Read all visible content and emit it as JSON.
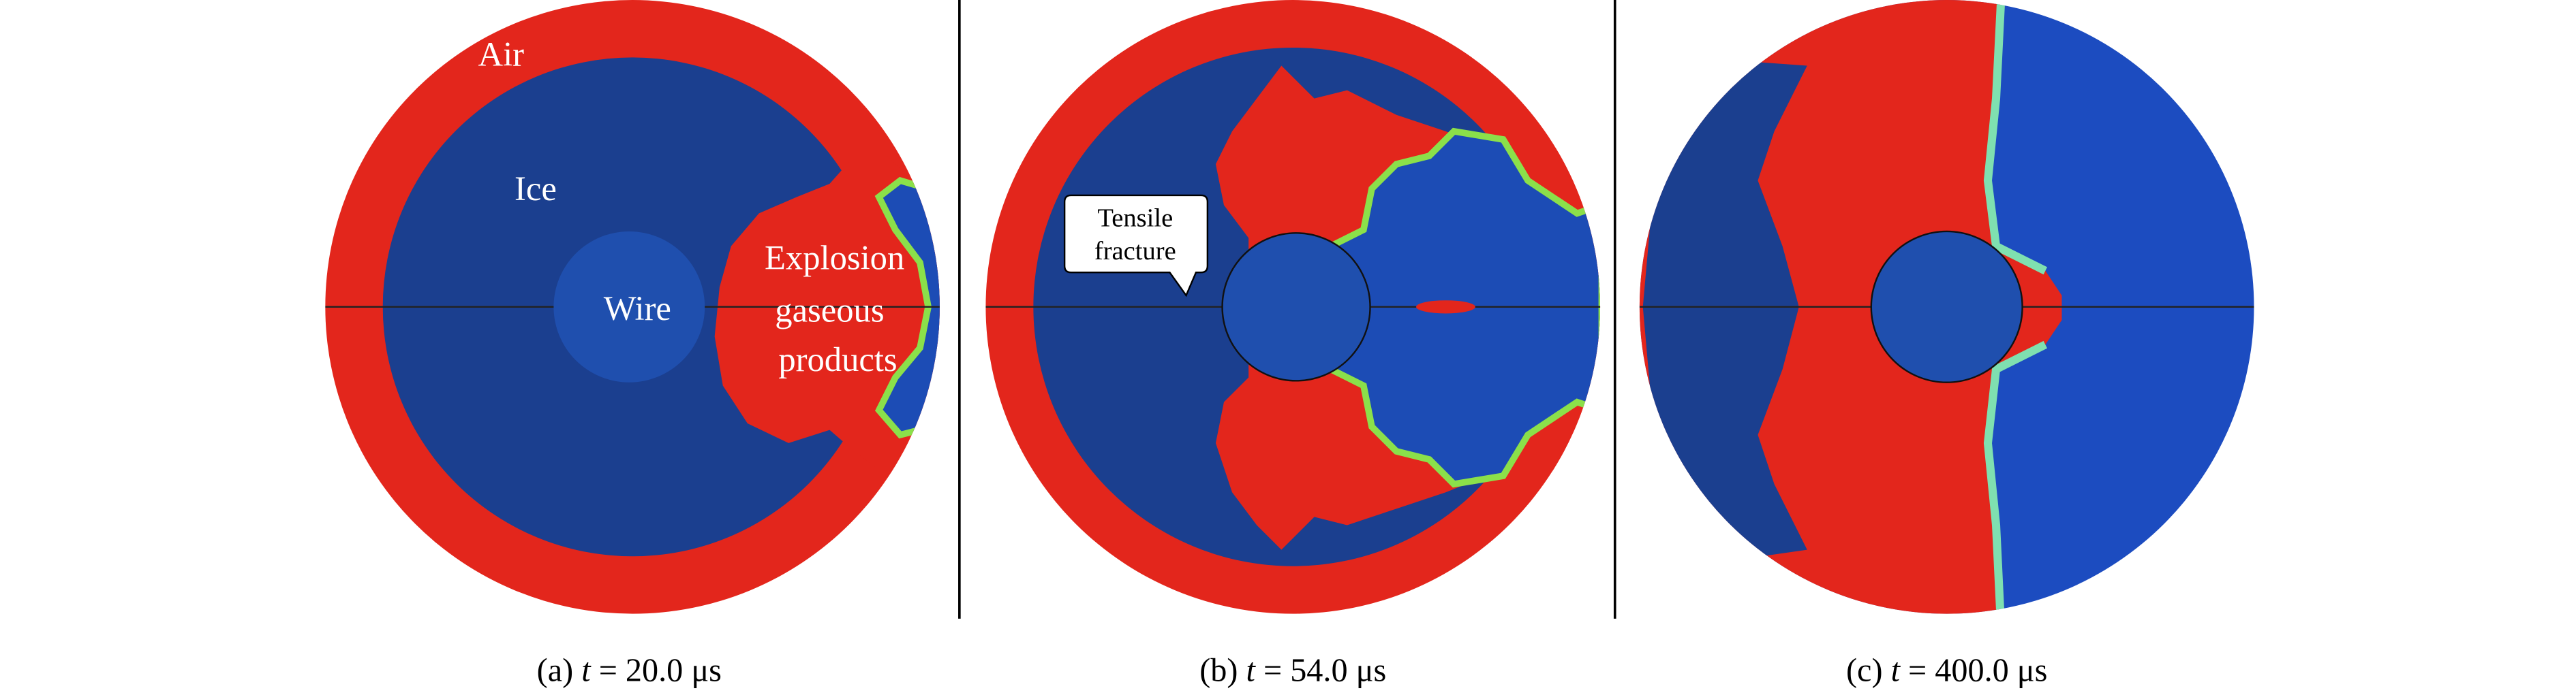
{
  "panels": [
    {
      "labels": [
        "Air",
        "Ice",
        "Wire",
        "Explosion",
        "gaseous",
        "products"
      ],
      "caption": {
        "label": "(a)",
        "variable": "t",
        "value": "= 20.0 μs"
      }
    },
    {
      "callout": [
        "Tensile",
        "fracture"
      ],
      "caption": {
        "label": "(b)",
        "variable": "t",
        "value": "= 54.0 μs"
      }
    },
    {
      "caption": {
        "label": "(c)",
        "variable": "t",
        "value": "= 400.0 μs"
      }
    }
  ]
}
